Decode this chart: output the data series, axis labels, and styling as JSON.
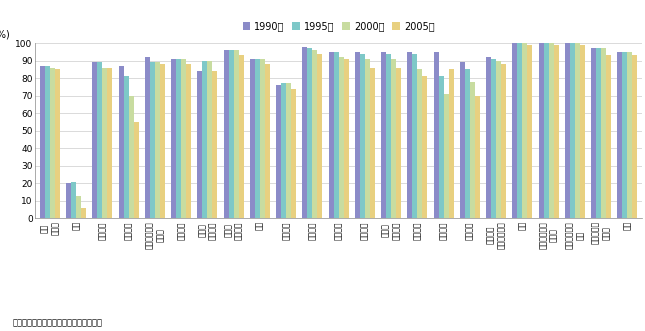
{
  "categories": [
    "農林\n水産業",
    "鉱業",
    "飲食料品",
    "繊維製品",
    "パルプ・紙・\n木製品",
    "化学製品",
    "石油・\n石炭製品",
    "窯業・\n土石製品",
    "鉄鉱",
    "非鉄金属",
    "金属製品",
    "一般機械",
    "電気機械",
    "情報・\n通信機器",
    "電子部品",
    "輸送機械",
    "精密機械",
    "その他の\n製造工業製品",
    "建設",
    "電力・ガス・\n熱供給",
    "水道・廃棄物\n処理",
    "サービス、\nその他",
    "全体"
  ],
  "series": {
    "1990年": [
      87,
      20,
      89,
      87,
      92,
      91,
      84,
      96,
      91,
      76,
      98,
      95,
      95,
      95,
      95,
      95,
      89,
      92,
      100,
      100,
      100,
      97,
      95
    ],
    "1995年": [
      87,
      21,
      89,
      81,
      89,
      91,
      90,
      96,
      91,
      77,
      97,
      95,
      94,
      94,
      94,
      81,
      85,
      91,
      100,
      100,
      100,
      97,
      95
    ],
    "2000年": [
      86,
      13,
      86,
      70,
      89,
      91,
      90,
      96,
      91,
      77,
      96,
      92,
      91,
      91,
      85,
      71,
      78,
      90,
      100,
      100,
      100,
      97,
      95
    ],
    "2005年": [
      85,
      6,
      86,
      55,
      88,
      88,
      84,
      93,
      88,
      74,
      94,
      91,
      86,
      86,
      81,
      85,
      70,
      88,
      99,
      99,
      99,
      93,
      93
    ]
  },
  "colors": {
    "1990年": "#8b8bc8",
    "1995年": "#7ec8c8",
    "2000年": "#c8dca0",
    "2005年": "#e8d080"
  },
  "legend_order": [
    "1990年",
    "1995年",
    "2000年",
    "2005年"
  ],
  "ylabel": "(%)",
  "ylim": [
    0,
    100
  ],
  "yticks": [
    0,
    10,
    20,
    30,
    40,
    50,
    60,
    70,
    80,
    90,
    100
  ],
  "footnote": "資料：総務省『産業連関表』から作成。",
  "background_color": "#ffffff",
  "grid_color": "#cccccc"
}
